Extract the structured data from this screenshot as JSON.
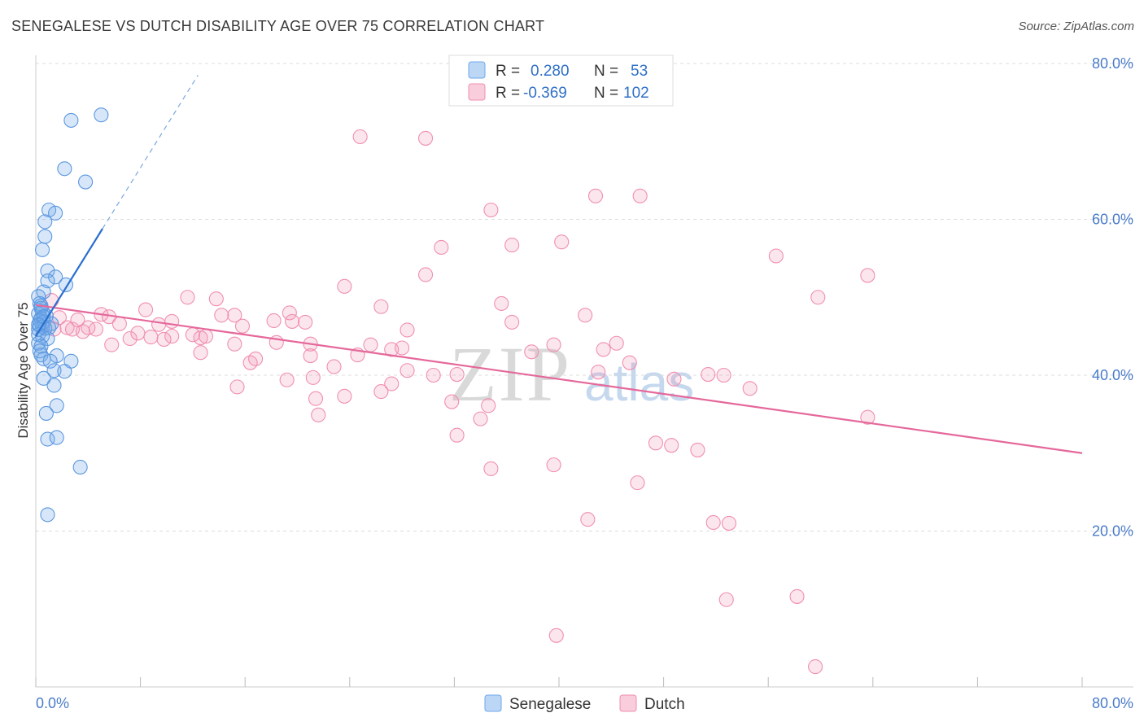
{
  "header": {
    "title": "SENEGALESE VS DUTCH DISABILITY AGE OVER 75 CORRELATION CHART",
    "source": "Source: ZipAtlas.com"
  },
  "watermark": {
    "zip": "ZIP",
    "atlas": "atlas"
  },
  "legend": {
    "rows": [
      {
        "r_label": "R =",
        "r_value": "0.280",
        "n_label": "N =",
        "n_value": "53"
      },
      {
        "r_label": "R =",
        "r_value": "-0.369",
        "n_label": "N =",
        "n_value": "102"
      }
    ]
  },
  "colors": {
    "senegalese": "#6fa8ea",
    "dutch": "#f08fb0",
    "senegalese_line": "#2b6fd0",
    "dutch_line": "#e5689a",
    "tick": "#4a7cc9"
  },
  "chart_data": {
    "type": "scatter",
    "title": "SENEGALESE VS DUTCH DISABILITY AGE OVER 75 CORRELATION CHART",
    "xlabel": "",
    "ylabel": "Disability Age Over 75",
    "xlim": [
      0,
      80
    ],
    "ylim": [
      0,
      80
    ],
    "x_tick_labels": [
      "0.0%",
      "80.0%"
    ],
    "y_tick_labels": [
      "80.0%",
      "60.0%",
      "40.0%",
      "20.0%"
    ],
    "y_ticks": [
      80,
      60,
      40,
      20
    ],
    "grid": true,
    "legend_position": "top-center",
    "series": [
      {
        "name": "Senegalese",
        "r": 0.28,
        "n": 53,
        "trend": {
          "x": [
            0,
            5.1
          ],
          "y": [
            45.0,
            58.8
          ]
        },
        "trend_extended": {
          "x": [
            5.1,
            12.4
          ],
          "y": [
            58.8,
            78.5
          ]
        },
        "points": [
          [
            2.7,
            72.7
          ],
          [
            5.0,
            73.4
          ],
          [
            2.2,
            66.5
          ],
          [
            3.8,
            64.8
          ],
          [
            1.0,
            61.2
          ],
          [
            1.5,
            60.8
          ],
          [
            0.7,
            59.7
          ],
          [
            0.7,
            57.8
          ],
          [
            0.5,
            56.1
          ],
          [
            0.9,
            53.4
          ],
          [
            1.5,
            52.6
          ],
          [
            0.9,
            52.1
          ],
          [
            2.3,
            51.6
          ],
          [
            0.6,
            50.7
          ],
          [
            0.2,
            50.1
          ],
          [
            0.3,
            49.2
          ],
          [
            0.4,
            48.6
          ],
          [
            0.5,
            48.2
          ],
          [
            0.2,
            47.9
          ],
          [
            0.8,
            47.6
          ],
          [
            0.4,
            47.3
          ],
          [
            0.3,
            47.0
          ],
          [
            0.6,
            46.8
          ],
          [
            1.2,
            46.6
          ],
          [
            0.3,
            46.4
          ],
          [
            0.5,
            46.2
          ],
          [
            0.7,
            46.0
          ],
          [
            0.2,
            45.9
          ],
          [
            1.0,
            46.1
          ],
          [
            0.2,
            45.2
          ],
          [
            0.5,
            45.0
          ],
          [
            0.9,
            44.7
          ],
          [
            0.2,
            44.1
          ],
          [
            0.4,
            43.7
          ],
          [
            0.3,
            43.1
          ],
          [
            0.4,
            42.6
          ],
          [
            1.6,
            42.5
          ],
          [
            0.6,
            42.1
          ],
          [
            1.1,
            41.8
          ],
          [
            2.7,
            41.8
          ],
          [
            1.4,
            40.6
          ],
          [
            2.2,
            40.5
          ],
          [
            0.6,
            39.6
          ],
          [
            1.4,
            38.7
          ],
          [
            1.6,
            36.1
          ],
          [
            0.8,
            35.1
          ],
          [
            0.9,
            31.8
          ],
          [
            1.6,
            32.0
          ],
          [
            3.4,
            28.2
          ],
          [
            0.9,
            22.1
          ],
          [
            0.4,
            48.9
          ],
          [
            0.2,
            46.5
          ],
          [
            0.6,
            47.5
          ]
        ]
      },
      {
        "name": "Dutch",
        "r": -0.369,
        "n": 102,
        "trend": {
          "x": [
            0,
            80
          ],
          "y": [
            49.0,
            30.0
          ]
        },
        "points": [
          [
            24.8,
            70.6
          ],
          [
            29.8,
            70.4
          ],
          [
            42.8,
            63.0
          ],
          [
            46.2,
            63.0
          ],
          [
            34.8,
            61.2
          ],
          [
            36.4,
            56.7
          ],
          [
            40.2,
            57.1
          ],
          [
            31.0,
            56.4
          ],
          [
            56.6,
            55.3
          ],
          [
            63.6,
            52.8
          ],
          [
            29.8,
            52.9
          ],
          [
            23.6,
            51.4
          ],
          [
            59.8,
            50.0
          ],
          [
            11.6,
            50.0
          ],
          [
            13.8,
            49.8
          ],
          [
            1.2,
            49.6
          ],
          [
            35.6,
            49.2
          ],
          [
            26.4,
            48.8
          ],
          [
            8.4,
            48.4
          ],
          [
            19.4,
            48.0
          ],
          [
            5.0,
            47.8
          ],
          [
            14.2,
            47.7
          ],
          [
            15.2,
            47.7
          ],
          [
            42.0,
            47.7
          ],
          [
            5.6,
            47.5
          ],
          [
            1.8,
            47.4
          ],
          [
            3.2,
            47.1
          ],
          [
            18.2,
            47.0
          ],
          [
            10.4,
            46.9
          ],
          [
            19.6,
            46.9
          ],
          [
            20.6,
            46.8
          ],
          [
            36.4,
            46.8
          ],
          [
            6.4,
            46.6
          ],
          [
            9.4,
            46.5
          ],
          [
            15.8,
            46.3
          ],
          [
            2.4,
            46.1
          ],
          [
            4.0,
            46.1
          ],
          [
            2.8,
            45.9
          ],
          [
            1.4,
            45.9
          ],
          [
            4.6,
            45.9
          ],
          [
            28.4,
            45.8
          ],
          [
            3.6,
            45.6
          ],
          [
            7.8,
            45.4
          ],
          [
            12.0,
            45.2
          ],
          [
            10.4,
            45.0
          ],
          [
            13.0,
            45.0
          ],
          [
            8.8,
            44.9
          ],
          [
            12.6,
            44.8
          ],
          [
            7.2,
            44.7
          ],
          [
            9.8,
            44.6
          ],
          [
            18.4,
            44.2
          ],
          [
            21.0,
            44.0
          ],
          [
            25.6,
            43.9
          ],
          [
            15.2,
            44.0
          ],
          [
            44.4,
            44.1
          ],
          [
            5.8,
            43.9
          ],
          [
            39.6,
            43.9
          ],
          [
            28.0,
            43.5
          ],
          [
            27.2,
            43.3
          ],
          [
            43.4,
            43.3
          ],
          [
            12.6,
            42.9
          ],
          [
            16.8,
            42.1
          ],
          [
            21.0,
            42.5
          ],
          [
            24.6,
            42.6
          ],
          [
            16.4,
            41.6
          ],
          [
            45.4,
            41.6
          ],
          [
            22.8,
            41.1
          ],
          [
            28.4,
            40.6
          ],
          [
            43.0,
            40.4
          ],
          [
            32.2,
            40.1
          ],
          [
            51.4,
            40.1
          ],
          [
            52.6,
            40.0
          ],
          [
            21.2,
            39.7
          ],
          [
            48.8,
            39.5
          ],
          [
            27.2,
            38.9
          ],
          [
            15.4,
            38.5
          ],
          [
            54.6,
            38.3
          ],
          [
            26.4,
            37.9
          ],
          [
            23.6,
            37.3
          ],
          [
            21.4,
            37.0
          ],
          [
            31.8,
            36.6
          ],
          [
            34.6,
            36.1
          ],
          [
            21.6,
            34.9
          ],
          [
            34.0,
            34.4
          ],
          [
            63.6,
            34.6
          ],
          [
            32.2,
            32.3
          ],
          [
            47.4,
            31.3
          ],
          [
            48.6,
            31.0
          ],
          [
            50.6,
            30.4
          ],
          [
            34.8,
            28.0
          ],
          [
            39.6,
            28.5
          ],
          [
            46.0,
            26.2
          ],
          [
            42.2,
            21.5
          ],
          [
            51.8,
            21.1
          ],
          [
            53.0,
            21.0
          ],
          [
            52.8,
            11.2
          ],
          [
            58.2,
            11.6
          ],
          [
            39.8,
            6.6
          ],
          [
            59.6,
            2.6
          ],
          [
            19.2,
            39.4
          ],
          [
            30.4,
            40.0
          ],
          [
            37.9,
            43.0
          ]
        ]
      }
    ]
  }
}
